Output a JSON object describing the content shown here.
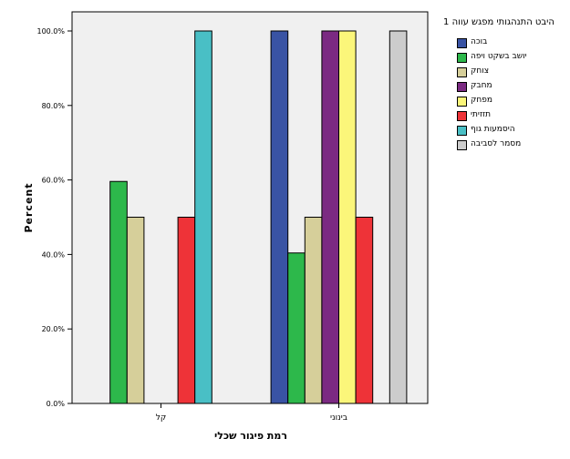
{
  "chart_data": {
    "type": "bar",
    "ylabel": "Percent",
    "xlabel": "רמת פיגור שכלי",
    "categories": [
      "קל",
      "בינוני"
    ],
    "ylim": [
      0,
      100
    ],
    "yticks": [
      "0.0%",
      "20.0%",
      "40.0%",
      "60.0%",
      "80.0%",
      "100.0%"
    ],
    "legend_title": "היבט התנהגותי מפגש עווה 1",
    "legend_position": "right",
    "grid": false,
    "series": [
      {
        "name": "בוכה",
        "color": "#3953a4",
        "values": [
          0,
          100
        ]
      },
      {
        "name": "יושב בשקט ויפה",
        "color": "#2db84b",
        "values": [
          59.6,
          40.4
        ]
      },
      {
        "name": "צוחק",
        "color": "#d6cf9a",
        "values": [
          50,
          50
        ]
      },
      {
        "name": "מחבק",
        "color": "#7b2a82",
        "values": [
          0,
          100
        ]
      },
      {
        "name": "מפחק",
        "color": "#fbf67a",
        "values": [
          0,
          100
        ]
      },
      {
        "name": "תזזיתי",
        "color": "#ee3338",
        "values": [
          50,
          50
        ]
      },
      {
        "name": "היסמעות גוף",
        "color": "#49bfc5",
        "values": [
          100,
          0
        ]
      },
      {
        "name": "מסמר לסביבה",
        "color": "#cccccc",
        "values": [
          0,
          100
        ]
      }
    ]
  }
}
